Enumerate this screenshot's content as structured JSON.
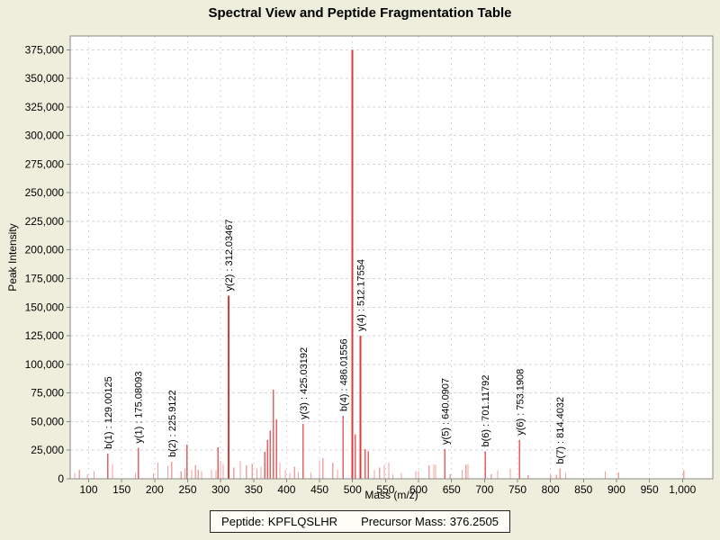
{
  "title": "Spectral View and Peptide Fragmentation Table",
  "chart_data": {
    "type": "bar",
    "title": "Spectral View and Peptide Fragmentation Table",
    "xlabel": "Mass (m/z)",
    "ylabel": "Peak Intensity",
    "xlim": [
      72,
      1046
    ],
    "ylim": [
      0,
      387000
    ],
    "x_ticks": [
      100,
      150,
      200,
      250,
      300,
      350,
      400,
      450,
      500,
      550,
      600,
      650,
      700,
      750,
      800,
      850,
      900,
      950,
      1000
    ],
    "y_ticks": [
      0,
      25000,
      50000,
      75000,
      100000,
      125000,
      150000,
      175000,
      200000,
      225000,
      250000,
      275000,
      300000,
      325000,
      350000,
      375000
    ],
    "grid": "dashed",
    "legend": "none",
    "colors": {
      "background": "#eeeedd",
      "plot_background": "#ffffff",
      "grid": "#d6d6d6",
      "axis": "#888888",
      "peak_large": "#dd3b3b",
      "peak_medium": "#e66262",
      "peak_small": "#f0a0a0",
      "text": "#000000"
    },
    "peaks": [
      [
        79,
        5000
      ],
      [
        86,
        8000
      ],
      [
        98,
        4000
      ],
      [
        108,
        6500
      ],
      [
        129.00125,
        22000
      ],
      [
        136,
        13000
      ],
      [
        171,
        5000
      ],
      [
        175.08093,
        27000
      ],
      [
        198,
        4700
      ],
      [
        205,
        14000
      ],
      [
        220,
        11500
      ],
      [
        225.9122,
        15000
      ],
      [
        240,
        6500
      ],
      [
        246,
        9200
      ],
      [
        249,
        30000
      ],
      [
        256,
        7800
      ],
      [
        262,
        11800
      ],
      [
        266,
        7800
      ],
      [
        271,
        6500
      ],
      [
        286,
        7800
      ],
      [
        293,
        7300
      ],
      [
        296,
        27500
      ],
      [
        300,
        15700
      ],
      [
        304,
        13000
      ],
      [
        312.03467,
        160000
      ],
      [
        320,
        10000
      ],
      [
        330,
        15500
      ],
      [
        339,
        11800
      ],
      [
        348,
        13000
      ],
      [
        355,
        9200
      ],
      [
        361,
        10500
      ],
      [
        367,
        23500
      ],
      [
        371,
        34000
      ],
      [
        375,
        42000
      ],
      [
        380,
        78000
      ],
      [
        385,
        52000
      ],
      [
        390,
        14000
      ],
      [
        398,
        7800
      ],
      [
        405,
        5000
      ],
      [
        412,
        10500
      ],
      [
        418,
        6000
      ],
      [
        425.03192,
        48000
      ],
      [
        437,
        5000
      ],
      [
        450,
        16000
      ],
      [
        455,
        18000
      ],
      [
        470,
        14000
      ],
      [
        477,
        8000
      ],
      [
        486.01556,
        55000
      ],
      [
        500,
        375000
      ],
      [
        504,
        39000
      ],
      [
        512.17554,
        125000
      ],
      [
        519,
        26000
      ],
      [
        524,
        24000
      ],
      [
        533,
        8000
      ],
      [
        541,
        10000
      ],
      [
        548,
        12000
      ],
      [
        555,
        14000
      ],
      [
        561,
        4000
      ],
      [
        574,
        5000
      ],
      [
        596,
        6500
      ],
      [
        600,
        6500
      ],
      [
        616,
        11800
      ],
      [
        623,
        12500
      ],
      [
        626,
        12000
      ],
      [
        640.0907,
        26000
      ],
      [
        648,
        4000
      ],
      [
        666,
        8000
      ],
      [
        672,
        12000
      ],
      [
        675,
        13000
      ],
      [
        701.11792,
        24000
      ],
      [
        710,
        4000
      ],
      [
        720,
        7500
      ],
      [
        739,
        9000
      ],
      [
        753.1908,
        34000
      ],
      [
        766,
        3000
      ],
      [
        800,
        3500
      ],
      [
        809,
        3500
      ],
      [
        814.4032,
        9000
      ],
      [
        823,
        5000
      ],
      [
        883,
        6500
      ],
      [
        903,
        5500
      ],
      [
        1002,
        7500
      ]
    ],
    "annotations": [
      {
        "label": "b(1) : 129.00125",
        "mz": 129.00125,
        "intensity": 22000
      },
      {
        "label": "y(1) : 175.08093",
        "mz": 175.08093,
        "intensity": 27000
      },
      {
        "label": "b(2) : 225.9122",
        "mz": 225.9122,
        "intensity": 15000
      },
      {
        "label": "y(2) : 312.03467",
        "mz": 312.03467,
        "intensity": 160000
      },
      {
        "label": "y(3) : 425.03192",
        "mz": 425.03192,
        "intensity": 48000
      },
      {
        "label": "b(4) : 486.01556",
        "mz": 486.01556,
        "intensity": 55000
      },
      {
        "label": "y(4) : 512.17554",
        "mz": 512.17554,
        "intensity": 125000
      },
      {
        "label": "y(5) : 640.0907",
        "mz": 640.0907,
        "intensity": 26000
      },
      {
        "label": "b(6) : 701.11792",
        "mz": 701.11792,
        "intensity": 24000
      },
      {
        "label": "y(6) : 753.1908",
        "mz": 753.1908,
        "intensity": 34000
      },
      {
        "label": "b(7) : 814.4032",
        "mz": 814.4032,
        "intensity": 9000
      }
    ]
  },
  "footer": {
    "peptide_label": "Peptide:",
    "peptide": "KPFLQSLHR",
    "precursor_label": "Precursor Mass:",
    "precursor_mass": "376.2505"
  }
}
